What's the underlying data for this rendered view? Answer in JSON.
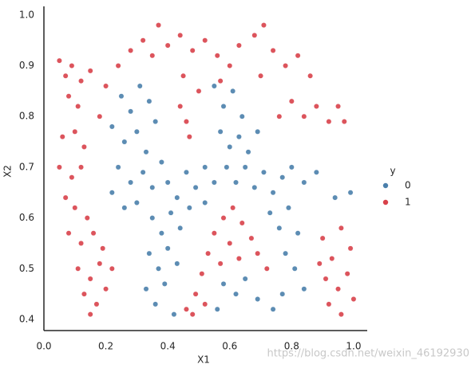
{
  "chart_data": {
    "type": "scatter",
    "x_label": "X1",
    "y_label": "X2",
    "xlim": [
      0,
      1.044
    ],
    "ylim": [
      0.378,
      1.017
    ],
    "xticks": [
      {
        "value": 0,
        "label": "0.0"
      },
      0.2,
      0.4,
      0.6,
      0.8,
      {
        "value": 1,
        "label": "1.0"
      }
    ],
    "yticks": [
      0.4,
      0.5,
      0.6,
      0.7,
      0.8,
      0.9,
      {
        "value": 1,
        "label": "1.0"
      }
    ],
    "grid": false,
    "legend_title": "y",
    "legend_position": "right",
    "watermark": "https://blog.csdn.net/weixin_46192930",
    "series": [
      {
        "name": "0",
        "color": "#4a7fab",
        "x": [
          0.25,
          0.28,
          0.31,
          0.34,
          0.22,
          0.26,
          0.3,
          0.33,
          0.36,
          0.24,
          0.28,
          0.32,
          0.35,
          0.38,
          0.22,
          0.26,
          0.3,
          0.4,
          0.43,
          0.46,
          0.49,
          0.52,
          0.55,
          0.35,
          0.38,
          0.41,
          0.44,
          0.47,
          0.34,
          0.37,
          0.4,
          0.43,
          0.33,
          0.36,
          0.39,
          0.42,
          0.55,
          0.58,
          0.61,
          0.64,
          0.57,
          0.6,
          0.63,
          0.66,
          0.69,
          0.59,
          0.62,
          0.65,
          0.68,
          0.71,
          0.74,
          0.77,
          0.8,
          0.84,
          0.88,
          0.94,
          0.99,
          0.73,
          0.76,
          0.79,
          0.82,
          0.78,
          0.81,
          0.84,
          0.77,
          0.74,
          0.58,
          0.62,
          0.65,
          0.56,
          0.69,
          0.52
        ],
        "values": [
          0.84,
          0.81,
          0.86,
          0.83,
          0.78,
          0.75,
          0.77,
          0.73,
          0.79,
          0.7,
          0.67,
          0.69,
          0.66,
          0.71,
          0.65,
          0.62,
          0.63,
          0.67,
          0.64,
          0.69,
          0.66,
          0.7,
          0.67,
          0.6,
          0.57,
          0.61,
          0.58,
          0.62,
          0.53,
          0.5,
          0.54,
          0.51,
          0.46,
          0.43,
          0.47,
          0.41,
          0.86,
          0.82,
          0.85,
          0.8,
          0.77,
          0.74,
          0.76,
          0.73,
          0.77,
          0.7,
          0.67,
          0.7,
          0.66,
          0.69,
          0.65,
          0.68,
          0.7,
          0.67,
          0.69,
          0.64,
          0.65,
          0.61,
          0.58,
          0.62,
          0.57,
          0.53,
          0.5,
          0.46,
          0.45,
          0.42,
          0.47,
          0.45,
          0.48,
          0.42,
          0.44,
          0.63
        ]
      },
      {
        "name": "1",
        "color": "#d8414a",
        "x": [
          0.05,
          0.07,
          0.09,
          0.12,
          0.15,
          0.08,
          0.11,
          0.06,
          0.1,
          0.13,
          0.05,
          0.09,
          0.12,
          0.07,
          0.1,
          0.14,
          0.08,
          0.12,
          0.16,
          0.19,
          0.11,
          0.15,
          0.18,
          0.13,
          0.17,
          0.2,
          0.15,
          0.22,
          0.18,
          0.2,
          0.24,
          0.28,
          0.32,
          0.37,
          0.35,
          0.4,
          0.44,
          0.48,
          0.52,
          0.56,
          0.6,
          0.63,
          0.68,
          0.71,
          0.74,
          0.78,
          0.82,
          0.86,
          0.7,
          0.45,
          0.5,
          0.57,
          0.8,
          0.84,
          0.88,
          0.92,
          0.95,
          0.97,
          0.76,
          0.46,
          0.47,
          0.44,
          0.9,
          0.93,
          0.96,
          0.99,
          0.91,
          0.95,
          0.98,
          0.92,
          0.96,
          1.0,
          0.89,
          0.46,
          0.49,
          0.51,
          0.53,
          0.55,
          0.58,
          0.61,
          0.64,
          0.67,
          0.69,
          0.57,
          0.6,
          0.63,
          0.48,
          0.52,
          0.72
        ],
        "values": [
          0.91,
          0.88,
          0.9,
          0.87,
          0.89,
          0.84,
          0.82,
          0.76,
          0.77,
          0.74,
          0.7,
          0.68,
          0.7,
          0.64,
          0.62,
          0.6,
          0.57,
          0.55,
          0.57,
          0.54,
          0.5,
          0.48,
          0.51,
          0.45,
          0.43,
          0.46,
          0.41,
          0.5,
          0.8,
          0.86,
          0.9,
          0.93,
          0.95,
          0.98,
          0.92,
          0.94,
          0.96,
          0.93,
          0.95,
          0.92,
          0.9,
          0.94,
          0.96,
          0.98,
          0.93,
          0.9,
          0.92,
          0.88,
          0.88,
          0.88,
          0.85,
          0.87,
          0.83,
          0.8,
          0.82,
          0.79,
          0.82,
          0.79,
          0.8,
          0.79,
          0.76,
          0.82,
          0.56,
          0.52,
          0.58,
          0.54,
          0.48,
          0.46,
          0.49,
          0.43,
          0.41,
          0.44,
          0.51,
          0.42,
          0.45,
          0.49,
          0.53,
          0.57,
          0.6,
          0.62,
          0.59,
          0.56,
          0.53,
          0.51,
          0.55,
          0.52,
          0.41,
          0.43,
          0.5
        ]
      }
    ]
  }
}
